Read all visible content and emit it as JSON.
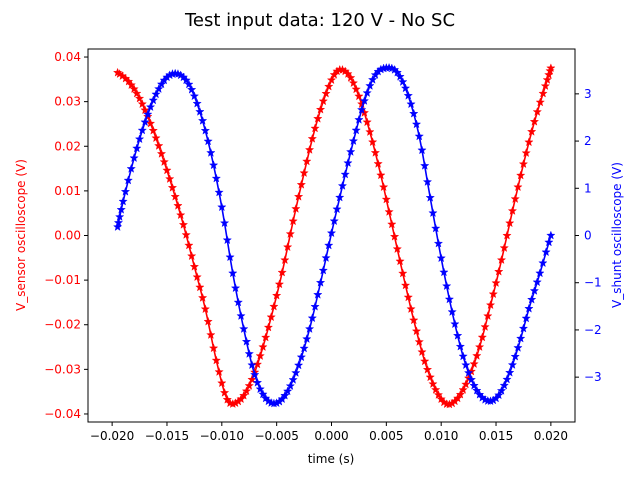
{
  "chart_data": {
    "type": "line",
    "title": "Test input data: 120 V - No SC",
    "xlabel": "time (s)",
    "xlim": [
      -0.0222,
      0.0222
    ],
    "x_ticks": [
      -0.02,
      -0.015,
      -0.01,
      -0.005,
      0.0,
      0.005,
      0.01,
      0.015,
      0.02
    ],
    "x_tick_labels": [
      "−0.020",
      "−0.015",
      "−0.010",
      "−0.005",
      "0.000",
      "0.005",
      "0.010",
      "0.015",
      "0.020"
    ],
    "grid": false,
    "legend": "none",
    "y_left": {
      "label": "V_sensor oscilloscope (V)",
      "color": "#ff0000",
      "lim": [
        -0.0418,
        0.0418
      ],
      "ticks": [
        -0.04,
        -0.03,
        -0.02,
        -0.01,
        0.0,
        0.01,
        0.02,
        0.03,
        0.04
      ],
      "tick_labels": [
        "−0.04",
        "−0.03",
        "−0.02",
        "−0.01",
        "0.00",
        "0.01",
        "0.02",
        "0.03",
        "0.04"
      ]
    },
    "y_right": {
      "label": "V_shunt oscilloscope (V)",
      "color": "#0000ff",
      "lim": [
        -3.95,
        3.95
      ],
      "ticks": [
        -3,
        -2,
        -1,
        0,
        1,
        2,
        3
      ],
      "tick_labels": [
        "−3",
        "−2",
        "−1",
        "0",
        "1",
        "2",
        "3"
      ]
    },
    "marker": "star",
    "series": [
      {
        "axis": "left",
        "color": "#ff0000",
        "x": [
          -0.0195,
          -0.0185,
          -0.0175,
          -0.0165,
          -0.0155,
          -0.0145,
          -0.0135,
          -0.0125,
          -0.0115,
          -0.0105,
          -0.0095,
          -0.0085,
          -0.0075,
          -0.0065,
          -0.0055,
          -0.0045,
          -0.0035,
          -0.0025,
          -0.0015,
          -0.0005,
          0.0005,
          0.0015,
          0.0025,
          0.0035,
          0.0045,
          0.0055,
          0.0065,
          0.0075,
          0.0085,
          0.0095,
          0.0105,
          0.0115,
          0.0125,
          0.0135,
          0.0145,
          0.0155,
          0.0165,
          0.0175,
          0.0185,
          0.0195,
          0.02
        ],
        "y": [
          0.0365,
          0.0345,
          0.0307,
          0.0251,
          0.0183,
          0.0107,
          0.0024,
          -0.007,
          -0.0165,
          -0.028,
          -0.0368,
          -0.0372,
          -0.0337,
          -0.027,
          -0.0183,
          -0.0083,
          0.0032,
          0.014,
          0.024,
          0.0318,
          0.0368,
          0.0362,
          0.0312,
          0.0232,
          0.0135,
          0.0025,
          -0.0085,
          -0.019,
          -0.0282,
          -0.0346,
          -0.0378,
          -0.0365,
          -0.032,
          -0.025,
          -0.0156,
          -0.0055,
          0.0055,
          0.016,
          0.0255,
          0.0335,
          0.0375
        ]
      },
      {
        "axis": "right",
        "color": "#0000ff",
        "x": [
          -0.0195,
          -0.019,
          -0.018,
          -0.017,
          -0.016,
          -0.015,
          -0.014,
          -0.013,
          -0.012,
          -0.011,
          -0.01,
          -0.009,
          -0.008,
          -0.007,
          -0.006,
          -0.005,
          -0.004,
          -0.003,
          -0.002,
          -0.001,
          0.0,
          0.001,
          0.002,
          0.003,
          0.004,
          0.005,
          0.006,
          0.007,
          0.008,
          0.009,
          0.01,
          0.011,
          0.012,
          0.013,
          0.014,
          0.015,
          0.016,
          0.017,
          0.018,
          0.019,
          0.02
        ],
        "y": [
          0.18,
          0.72,
          1.64,
          2.4,
          2.99,
          3.35,
          3.42,
          3.2,
          2.62,
          1.75,
          0.6,
          -0.8,
          -1.98,
          -2.95,
          -3.45,
          -3.55,
          -3.3,
          -2.75,
          -1.98,
          -1.0,
          0.05,
          1.05,
          2.0,
          2.85,
          3.4,
          3.55,
          3.45,
          2.96,
          2.1,
          0.8,
          -0.48,
          -1.62,
          -2.56,
          -3.18,
          -3.48,
          -3.45,
          -3.05,
          -2.38,
          -1.55,
          -0.8,
          0.0
        ]
      }
    ]
  }
}
